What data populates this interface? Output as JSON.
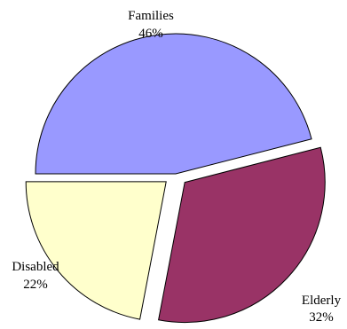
{
  "chart_data": {
    "type": "pie",
    "title": "",
    "slices": [
      {
        "label": "Families",
        "value": 46,
        "percent_label": "46%",
        "color": "#9999ff",
        "exploded": false
      },
      {
        "label": "Elderly",
        "value": 32,
        "percent_label": "32%",
        "color": "#993366",
        "exploded": true
      },
      {
        "label": "Disabled",
        "value": 22,
        "percent_label": "22%",
        "color": "#ffffcc",
        "exploded": true
      }
    ],
    "start_angle_deg": 180,
    "legend": "none"
  }
}
